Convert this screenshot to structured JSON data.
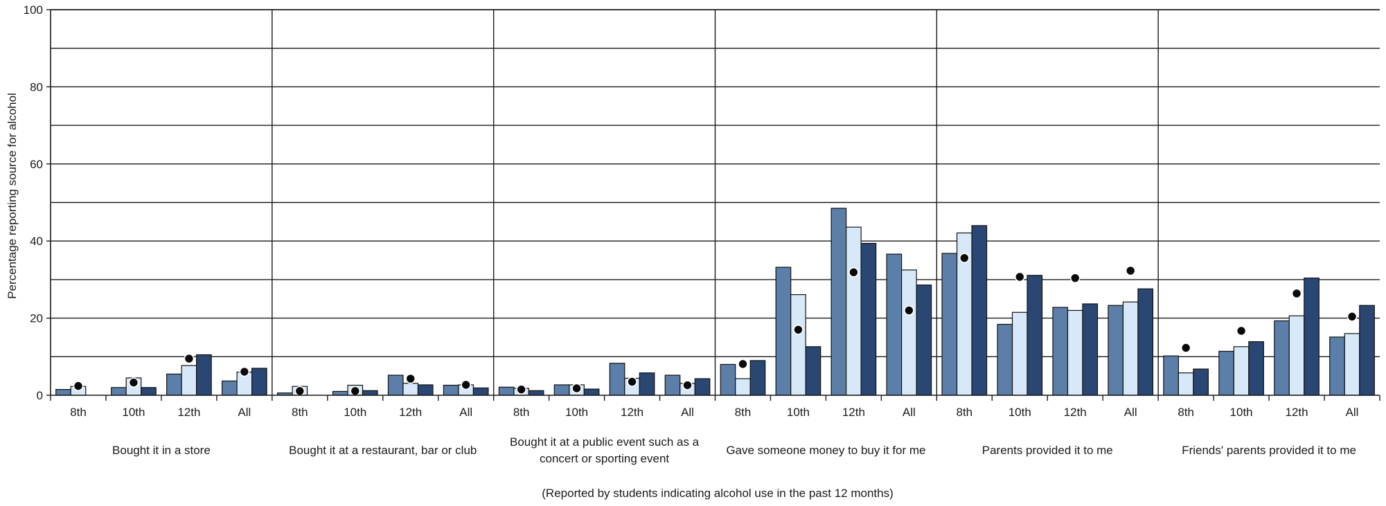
{
  "chart_data": {
    "type": "bar",
    "title": "",
    "ylabel": "Percentage reporting source for alcohol",
    "xlabel": "(Reported by students indicating alcohol use in the past 12 months)",
    "ylim": [
      0,
      100
    ],
    "yticks": [
      0,
      20,
      40,
      60,
      80,
      100
    ],
    "grid": true,
    "legend": "none",
    "colors": [
      "#5b7fa8",
      "#d7e9f8",
      "#2a4672"
    ],
    "marker_color": "#0a0a0a",
    "groups": [
      "Bought it in a store",
      "Bought it at a restaurant, bar or club",
      "Bought it at a public event such as a concert or sporting event",
      "Gave someone money to buy it for me",
      "Parents provided it to me",
      "Friends' parents provided it to me"
    ],
    "group_label_lines": [
      [
        "Bought it in a store"
      ],
      [
        "Bought it at a restaurant, bar or club"
      ],
      [
        "Bought it at a public event such as a",
        "concert or sporting event"
      ],
      [
        "Gave someone money to buy it for me"
      ],
      [
        "Parents provided it to me"
      ],
      [
        "Friends' parents provided it to me"
      ]
    ],
    "subcategories": [
      "8th",
      "10th",
      "12th",
      "All"
    ],
    "values": [
      [
        [
          1.5,
          2.3,
          0.0,
          2.4
        ],
        [
          2.0,
          4.5,
          2.0,
          3.3
        ],
        [
          5.5,
          7.7,
          10.5,
          9.5
        ],
        [
          3.7,
          6.0,
          7.0,
          6.1
        ]
      ],
      [
        [
          0.6,
          2.3,
          0.0,
          1.1
        ],
        [
          1.0,
          2.6,
          1.2,
          1.1
        ],
        [
          5.2,
          3.1,
          2.7,
          4.3
        ],
        [
          2.6,
          2.7,
          1.9,
          2.7
        ]
      ],
      [
        [
          2.1,
          1.8,
          1.2,
          1.5
        ],
        [
          2.7,
          2.7,
          1.6,
          1.8
        ],
        [
          8.3,
          4.4,
          5.8,
          3.5
        ],
        [
          5.2,
          3.1,
          4.3,
          2.6
        ]
      ],
      [
        [
          8.0,
          4.3,
          9.0,
          8.1
        ],
        [
          33.2,
          26.1,
          12.6,
          17.0
        ],
        [
          48.5,
          43.6,
          39.4,
          31.9
        ],
        [
          36.6,
          32.5,
          28.6,
          22.0
        ]
      ],
      [
        [
          36.8,
          42.1,
          44.0,
          35.6
        ],
        [
          18.4,
          21.5,
          31.1,
          30.7
        ],
        [
          22.8,
          22.0,
          23.7,
          30.4
        ],
        [
          23.3,
          24.2,
          27.6,
          32.3
        ]
      ],
      [
        [
          10.2,
          5.8,
          6.8,
          12.3
        ],
        [
          11.4,
          12.6,
          13.9,
          16.7
        ],
        [
          19.3,
          20.6,
          30.4,
          26.4
        ],
        [
          15.1,
          16.0,
          23.3,
          20.4
        ]
      ]
    ]
  }
}
